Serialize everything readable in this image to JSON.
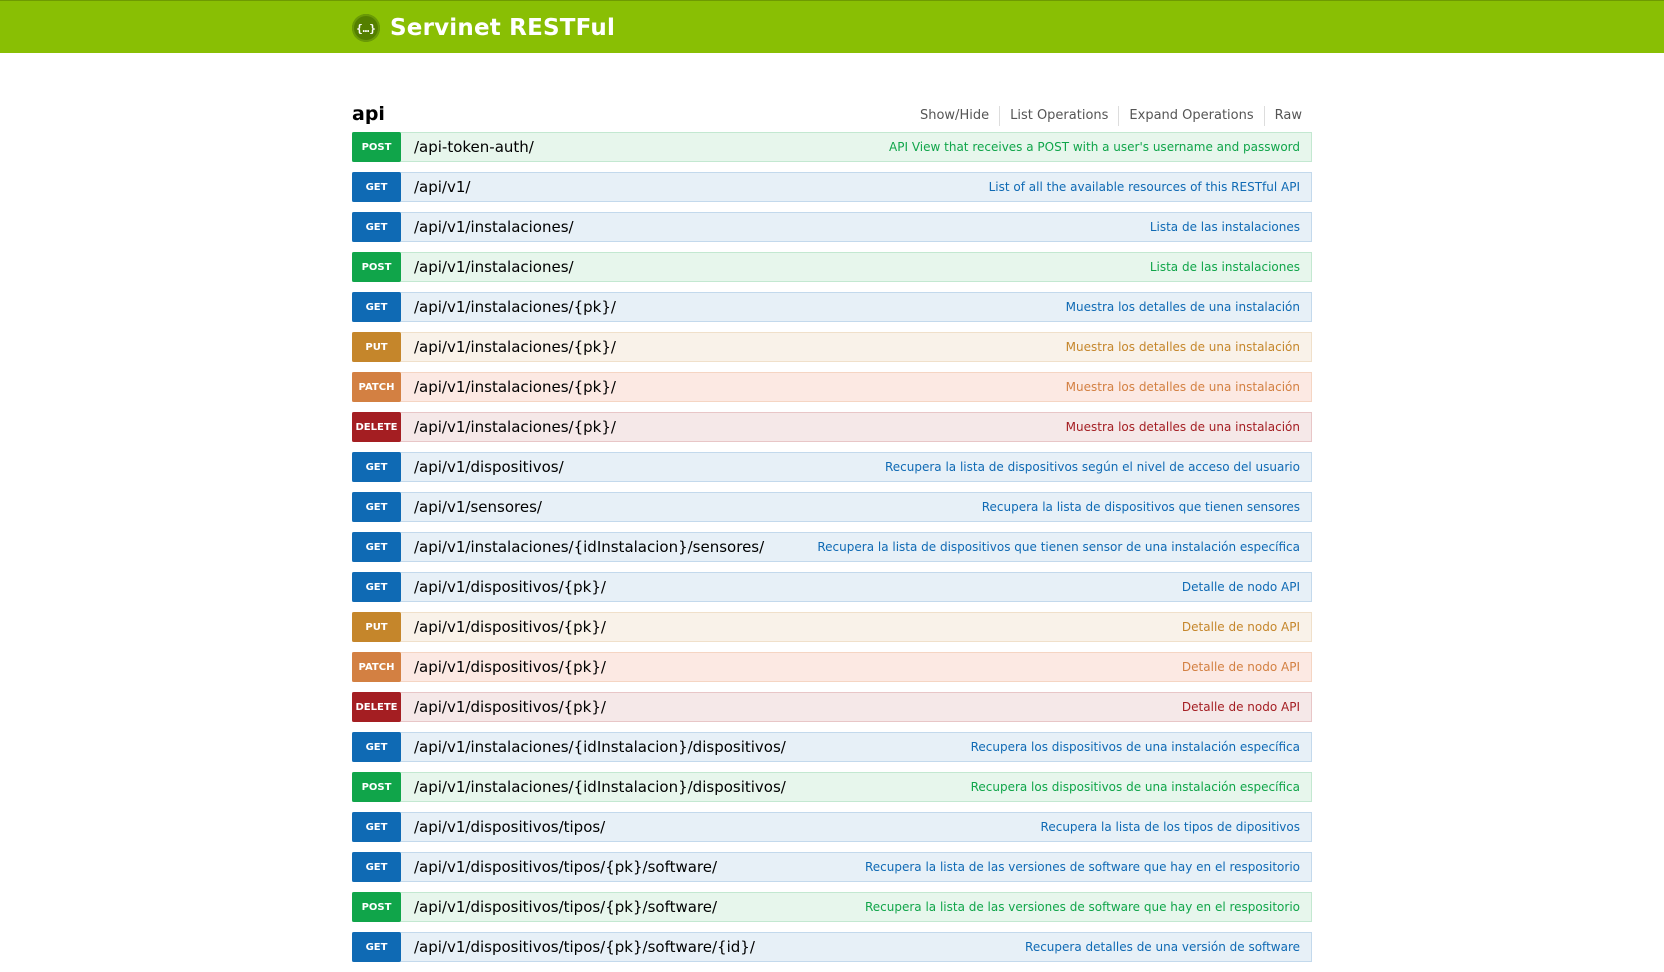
{
  "header": {
    "logo_icon": "{…}",
    "title": "Servinet RESTFul",
    "bar_color": "#89bf04"
  },
  "resource": {
    "name": "api",
    "links": [
      "Show/Hide",
      "List Operations",
      "Expand Operations",
      "Raw"
    ]
  },
  "method_colors": {
    "get": "#0f6ab4",
    "post": "#10a54a",
    "put": "#c5862b",
    "patch": "#d38042",
    "delete": "#a41e22"
  },
  "operations": [
    {
      "method": "POST",
      "path": "/api-token-auth/",
      "summary": "API View that receives a POST with a user's username and password"
    },
    {
      "method": "GET",
      "path": "/api/v1/",
      "summary": "List of all the available resources of this RESTful API"
    },
    {
      "method": "GET",
      "path": "/api/v1/instalaciones/",
      "summary": "Lista de las instalaciones"
    },
    {
      "method": "POST",
      "path": "/api/v1/instalaciones/",
      "summary": "Lista de las instalaciones"
    },
    {
      "method": "GET",
      "path": "/api/v1/instalaciones/{pk}/",
      "summary": "Muestra los detalles de una instalación"
    },
    {
      "method": "PUT",
      "path": "/api/v1/instalaciones/{pk}/",
      "summary": "Muestra los detalles de una instalación"
    },
    {
      "method": "PATCH",
      "path": "/api/v1/instalaciones/{pk}/",
      "summary": "Muestra los detalles de una instalación"
    },
    {
      "method": "DELETE",
      "path": "/api/v1/instalaciones/{pk}/",
      "summary": "Muestra los detalles de una instalación"
    },
    {
      "method": "GET",
      "path": "/api/v1/dispositivos/",
      "summary": "Recupera la lista de dispositivos según el nivel de acceso del usuario"
    },
    {
      "method": "GET",
      "path": "/api/v1/sensores/",
      "summary": "Recupera la lista de dispositivos que tienen sensores"
    },
    {
      "method": "GET",
      "path": "/api/v1/instalaciones/{idInstalacion}/sensores/",
      "summary": "Recupera la lista de dispositivos que tienen sensor de una instalación específica"
    },
    {
      "method": "GET",
      "path": "/api/v1/dispositivos/{pk}/",
      "summary": "Detalle de nodo API"
    },
    {
      "method": "PUT",
      "path": "/api/v1/dispositivos/{pk}/",
      "summary": "Detalle de nodo API"
    },
    {
      "method": "PATCH",
      "path": "/api/v1/dispositivos/{pk}/",
      "summary": "Detalle de nodo API"
    },
    {
      "method": "DELETE",
      "path": "/api/v1/dispositivos/{pk}/",
      "summary": "Detalle de nodo API"
    },
    {
      "method": "GET",
      "path": "/api/v1/instalaciones/{idInstalacion}/dispositivos/",
      "summary": "Recupera los dispositivos de una instalación específica"
    },
    {
      "method": "POST",
      "path": "/api/v1/instalaciones/{idInstalacion}/dispositivos/",
      "summary": "Recupera los dispositivos de una instalación específica"
    },
    {
      "method": "GET",
      "path": "/api/v1/dispositivos/tipos/",
      "summary": "Recupera la lista de los tipos de dipositivos"
    },
    {
      "method": "GET",
      "path": "/api/v1/dispositivos/tipos/{pk}/software/",
      "summary": "Recupera la lista de las versiones de software que hay en el respositorio"
    },
    {
      "method": "POST",
      "path": "/api/v1/dispositivos/tipos/{pk}/software/",
      "summary": "Recupera la lista de las versiones de software que hay en el respositorio"
    },
    {
      "method": "GET",
      "path": "/api/v1/dispositivos/tipos/{pk}/software/{id}/",
      "summary": "Recupera detalles de una versión de software"
    }
  ]
}
